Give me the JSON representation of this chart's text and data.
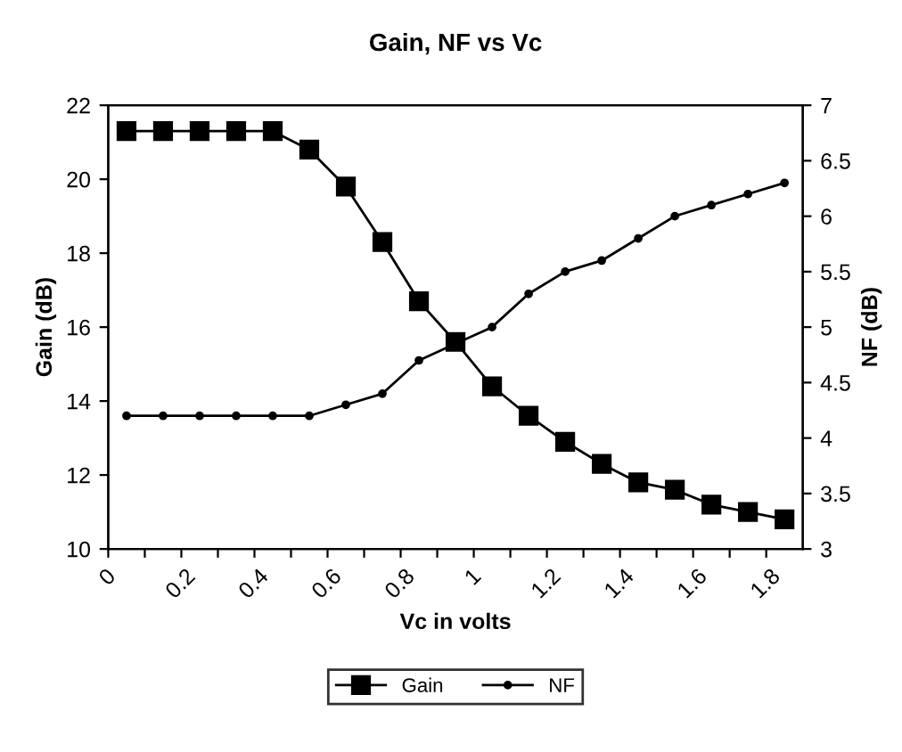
{
  "chart_data": {
    "type": "line",
    "title": "Gain, NF vs Vc",
    "xlabel": "Vc in volts",
    "ylabel": "Gain (dB)",
    "y2label": "NF (dB)",
    "x": [
      0.05,
      0.15,
      0.25,
      0.35,
      0.45,
      0.55,
      0.65,
      0.75,
      0.85,
      0.95,
      1.05,
      1.15,
      1.25,
      1.35,
      1.45,
      1.55,
      1.65,
      1.75,
      1.85
    ],
    "series": [
      {
        "name": "Gain",
        "color": "#000000",
        "marker": "square",
        "values": [
          21.3,
          21.3,
          21.3,
          21.3,
          21.3,
          20.8,
          19.8,
          18.3,
          16.7,
          15.6,
          14.4,
          13.6,
          12.9,
          12.3,
          11.8,
          11.6,
          11.2,
          11.0,
          10.8
        ]
      },
      {
        "name": "NF",
        "color": "#000000",
        "marker": "circle",
        "axis": "y2",
        "values": [
          4.2,
          4.2,
          4.2,
          4.2,
          4.2,
          4.2,
          4.3,
          4.4,
          4.7,
          4.85,
          5.0,
          5.3,
          5.5,
          5.6,
          5.8,
          6.0,
          6.1,
          6.2,
          6.3
        ]
      }
    ],
    "xlim": [
      0,
      1.9
    ],
    "xticks": [
      0,
      {
        "value": 0.1,
        "label": null
      },
      0.2,
      {
        "value": 0.3,
        "label": null
      },
      0.4,
      {
        "value": 0.5,
        "label": null
      },
      0.6,
      {
        "value": 0.7,
        "label": null
      },
      0.8,
      {
        "value": 0.9,
        "label": null
      },
      1,
      {
        "value": 1.1,
        "label": null
      },
      1.2,
      {
        "value": 1.3,
        "label": null
      },
      1.4,
      {
        "value": 1.5,
        "label": null
      },
      1.6,
      {
        "value": 1.7,
        "label": null
      },
      1.8
    ],
    "ylim": [
      10,
      22
    ],
    "yticks": [
      10,
      12,
      14,
      16,
      18,
      20,
      22
    ],
    "y2lim": [
      3,
      7
    ],
    "y2ticks": [
      3,
      3.5,
      4,
      4.5,
      5,
      5.5,
      6,
      6.5,
      7
    ],
    "legend": "bottom",
    "grid": false,
    "line_style": "solid"
  }
}
